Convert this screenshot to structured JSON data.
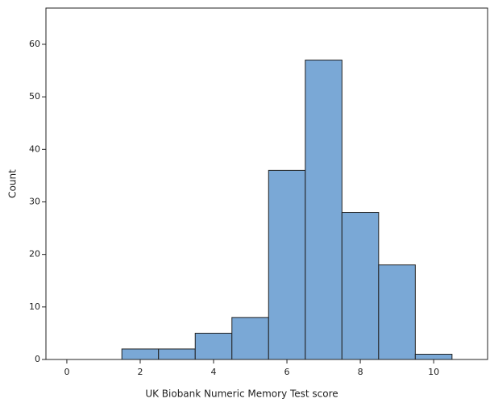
{
  "chart_data": {
    "type": "histogram",
    "x_label": "UK Biobank Numeric Memory Test score",
    "y_label": "Count",
    "bins": [
      1.5,
      2.5,
      3.5,
      4.5,
      5.5,
      6.5,
      7.5,
      8.5,
      9.5,
      10.5
    ],
    "values": [
      2,
      2,
      5,
      8,
      36,
      57,
      28,
      18,
      1
    ],
    "color": "#7aa8d6",
    "xlim": [
      -0.57,
      11.47
    ],
    "xticks": [
      0,
      2,
      4,
      6,
      8,
      10
    ],
    "ylim": [
      0,
      66.9
    ],
    "yticks": [
      0,
      10,
      20,
      30,
      40,
      50,
      60
    ]
  }
}
